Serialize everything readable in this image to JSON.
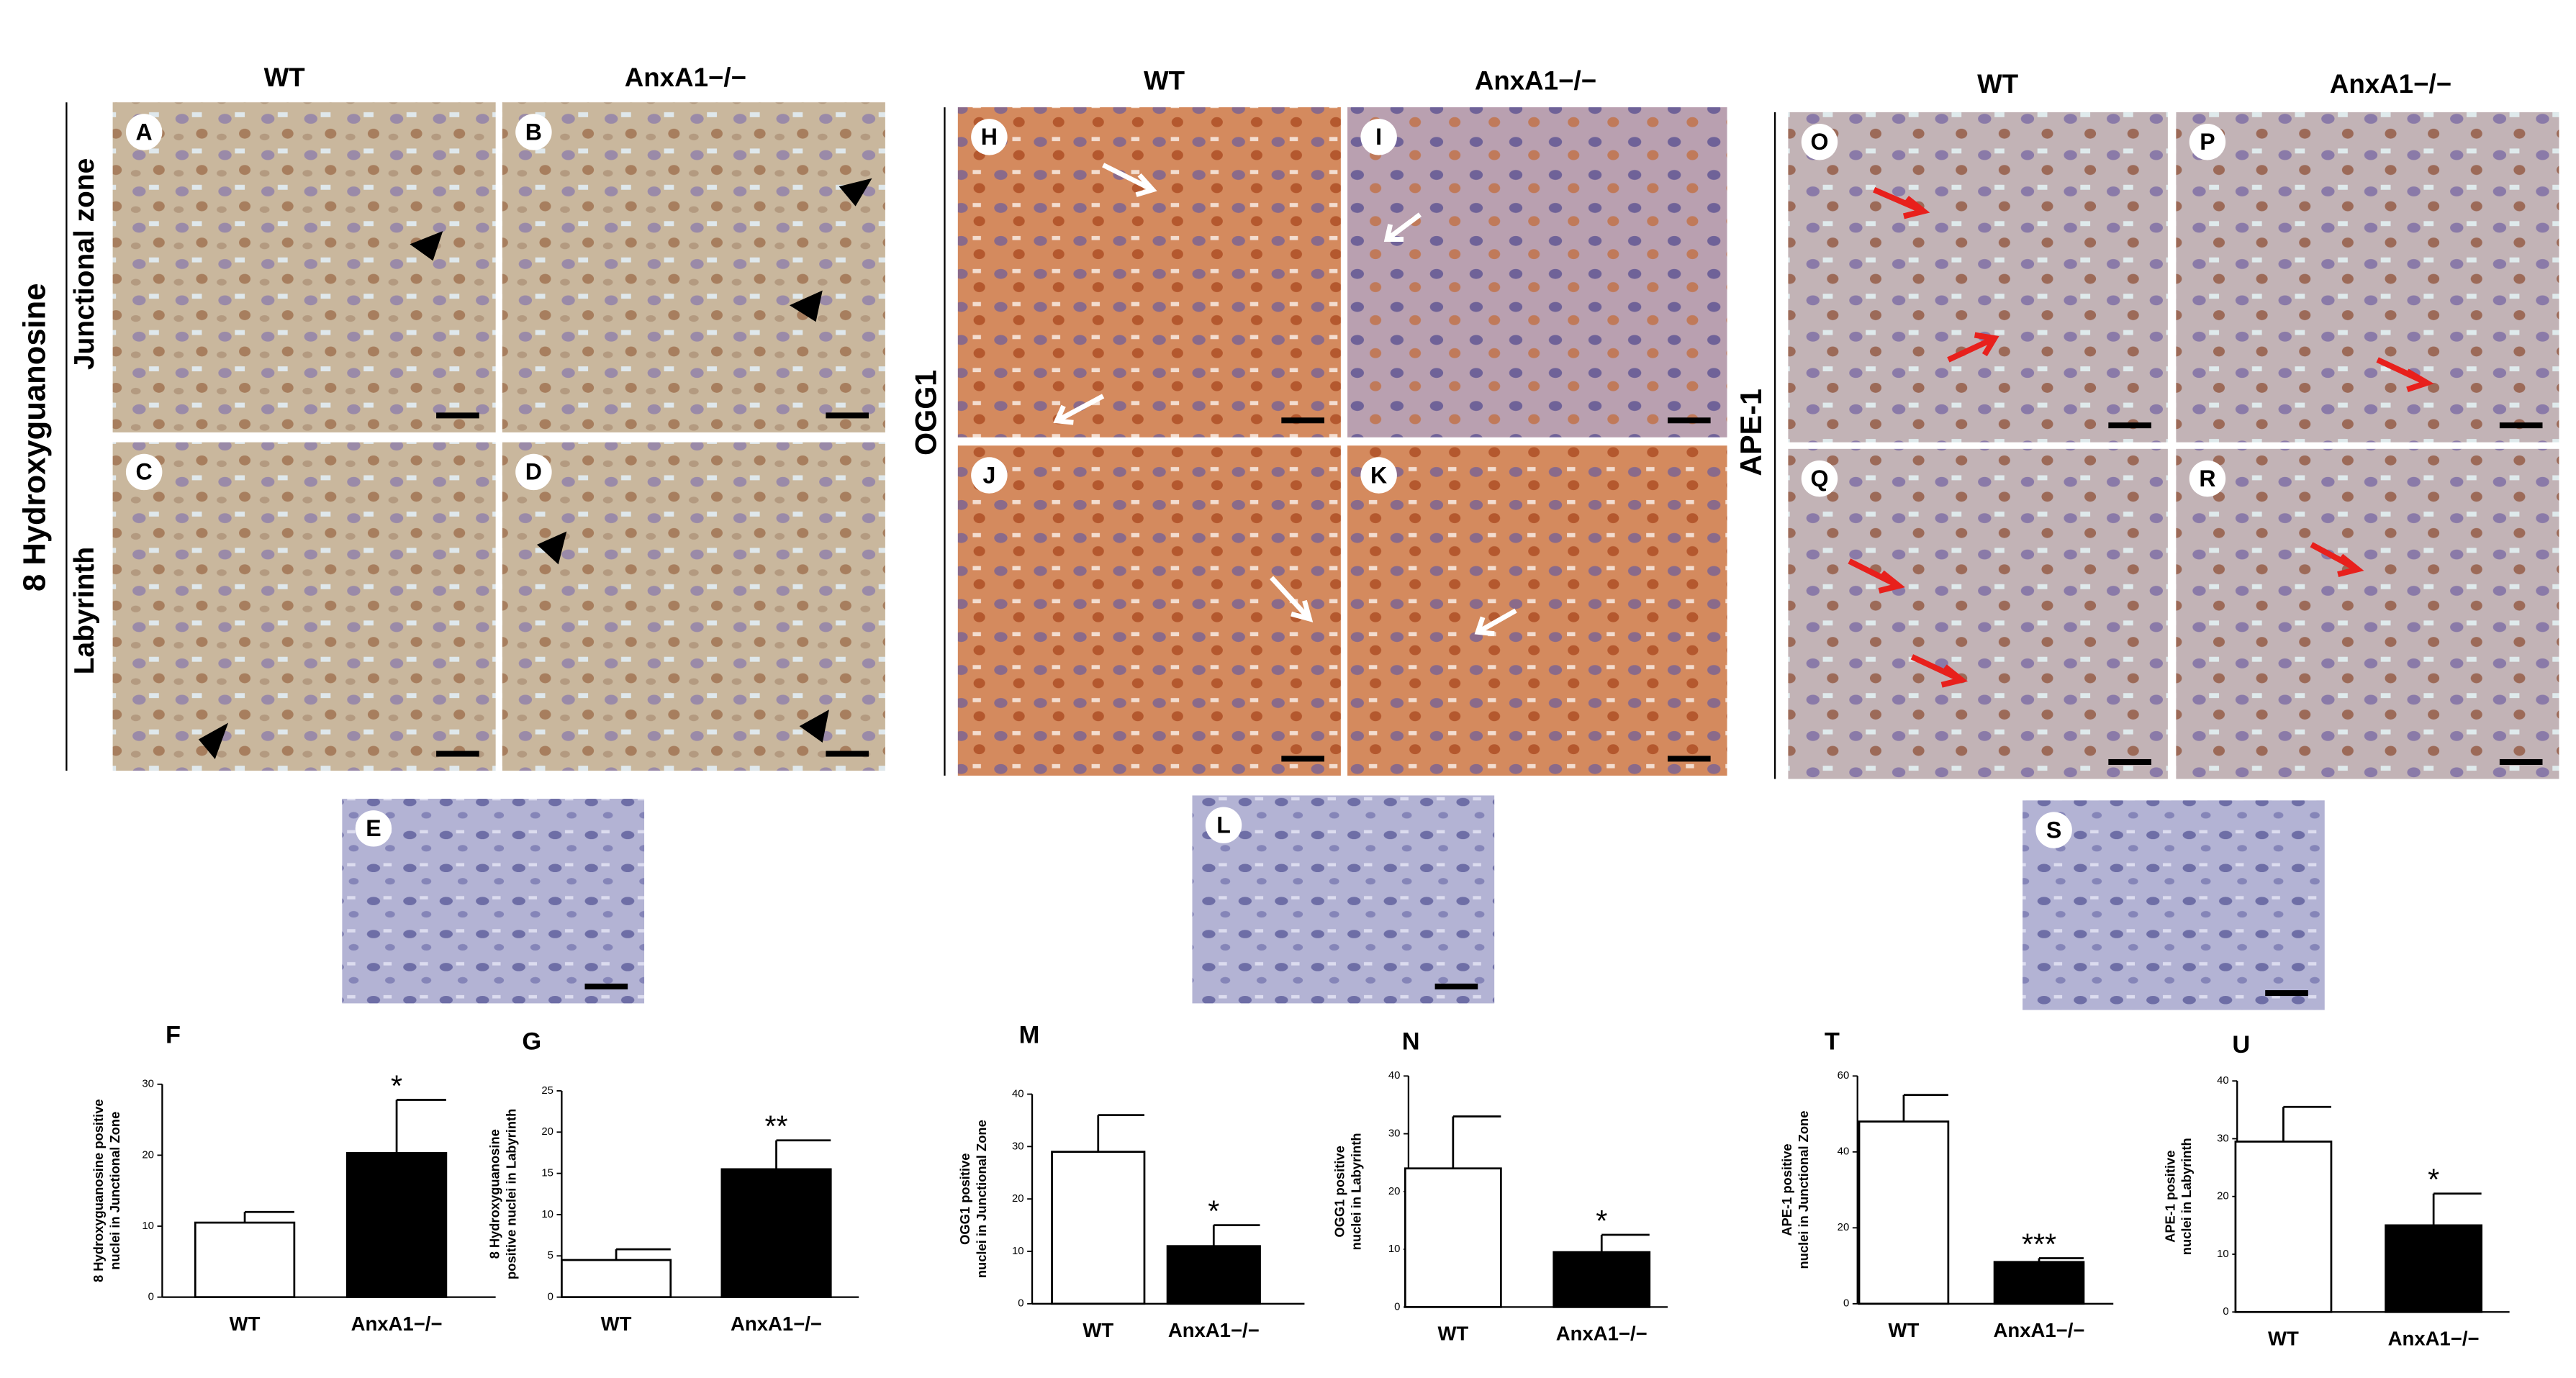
{
  "headers": [
    "WT",
    "AnxA1−/−",
    "WT",
    "AnxA1−/−",
    "WT",
    "AnxA1−/−"
  ],
  "row_labels": {
    "marker_1": "8 Hydroxyguanosine",
    "zone_1": "Junctional zone",
    "zone_2": "Labyrinth",
    "marker_2": "OGG1",
    "marker_3": "APE-1"
  },
  "panel_letters": [
    "A",
    "B",
    "C",
    "D",
    "E",
    "H",
    "I",
    "J",
    "K",
    "L",
    "O",
    "P",
    "Q",
    "R",
    "S"
  ],
  "chart_data": [
    {
      "type": "bar",
      "label": "F",
      "ylabel": [
        "8 Hydroxyguanosine positive",
        "nuclei in Junctional Zone"
      ],
      "categories": [
        "WT",
        "AnxA1−/−"
      ],
      "values": [
        10.5,
        20.3
      ],
      "errors": [
        1.5,
        7.5
      ],
      "colors": [
        "#ffffff",
        "#000000"
      ],
      "annotation": "*",
      "ylim": [
        0,
        30
      ],
      "yticks": [
        0,
        10,
        20,
        30
      ]
    },
    {
      "type": "bar",
      "label": "G",
      "ylabel": [
        "8 Hydroxyguanosine",
        "positive nuclei in Labyrinth"
      ],
      "categories": [
        "WT",
        "AnxA1−/−"
      ],
      "values": [
        4.5,
        15.5
      ],
      "errors": [
        1.3,
        3.5
      ],
      "colors": [
        "#ffffff",
        "#000000"
      ],
      "annotation": "**",
      "ylim": [
        0,
        25
      ],
      "yticks": [
        0,
        5,
        10,
        15,
        20,
        25
      ]
    },
    {
      "type": "bar",
      "label": "M",
      "ylabel": [
        "OGG1 positive",
        "nuclei in Junctional Zone"
      ],
      "categories": [
        "WT",
        "AnxA1−/−"
      ],
      "values": [
        29,
        11
      ],
      "errors": [
        7,
        4
      ],
      "colors": [
        "#ffffff",
        "#000000"
      ],
      "annotation": "*",
      "ylim": [
        0,
        40
      ],
      "yticks": [
        0,
        10,
        20,
        30,
        40
      ]
    },
    {
      "type": "bar",
      "label": "N",
      "ylabel": [
        "OGG1 positive",
        "nuclei in Labyrinth"
      ],
      "categories": [
        "WT",
        "AnxA1−/−"
      ],
      "values": [
        24,
        9.5
      ],
      "errors": [
        9,
        3
      ],
      "colors": [
        "#ffffff",
        "#000000"
      ],
      "annotation": "*",
      "ylim": [
        0,
        40
      ],
      "yticks": [
        0,
        10,
        20,
        30,
        40
      ]
    },
    {
      "type": "bar",
      "label": "T",
      "ylabel": [
        "APE-1 positive",
        "nuclei in Junctional Zone"
      ],
      "categories": [
        "WT",
        "AnxA1−/−"
      ],
      "values": [
        48,
        11
      ],
      "errors": [
        7,
        1
      ],
      "colors": [
        "#ffffff",
        "#000000"
      ],
      "annotation": "***",
      "ylim": [
        0,
        60
      ],
      "yticks": [
        0,
        20,
        40,
        60
      ]
    },
    {
      "type": "bar",
      "label": "U",
      "ylabel": [
        "APE-1 positive",
        "nuclei in Labyrinth"
      ],
      "categories": [
        "WT",
        "AnxA1−/−"
      ],
      "values": [
        29.5,
        15
      ],
      "errors": [
        6,
        5.5
      ],
      "colors": [
        "#ffffff",
        "#000000"
      ],
      "annotation": "*",
      "ylim": [
        0,
        40
      ],
      "yticks": [
        0,
        10,
        20,
        30,
        40
      ]
    }
  ]
}
